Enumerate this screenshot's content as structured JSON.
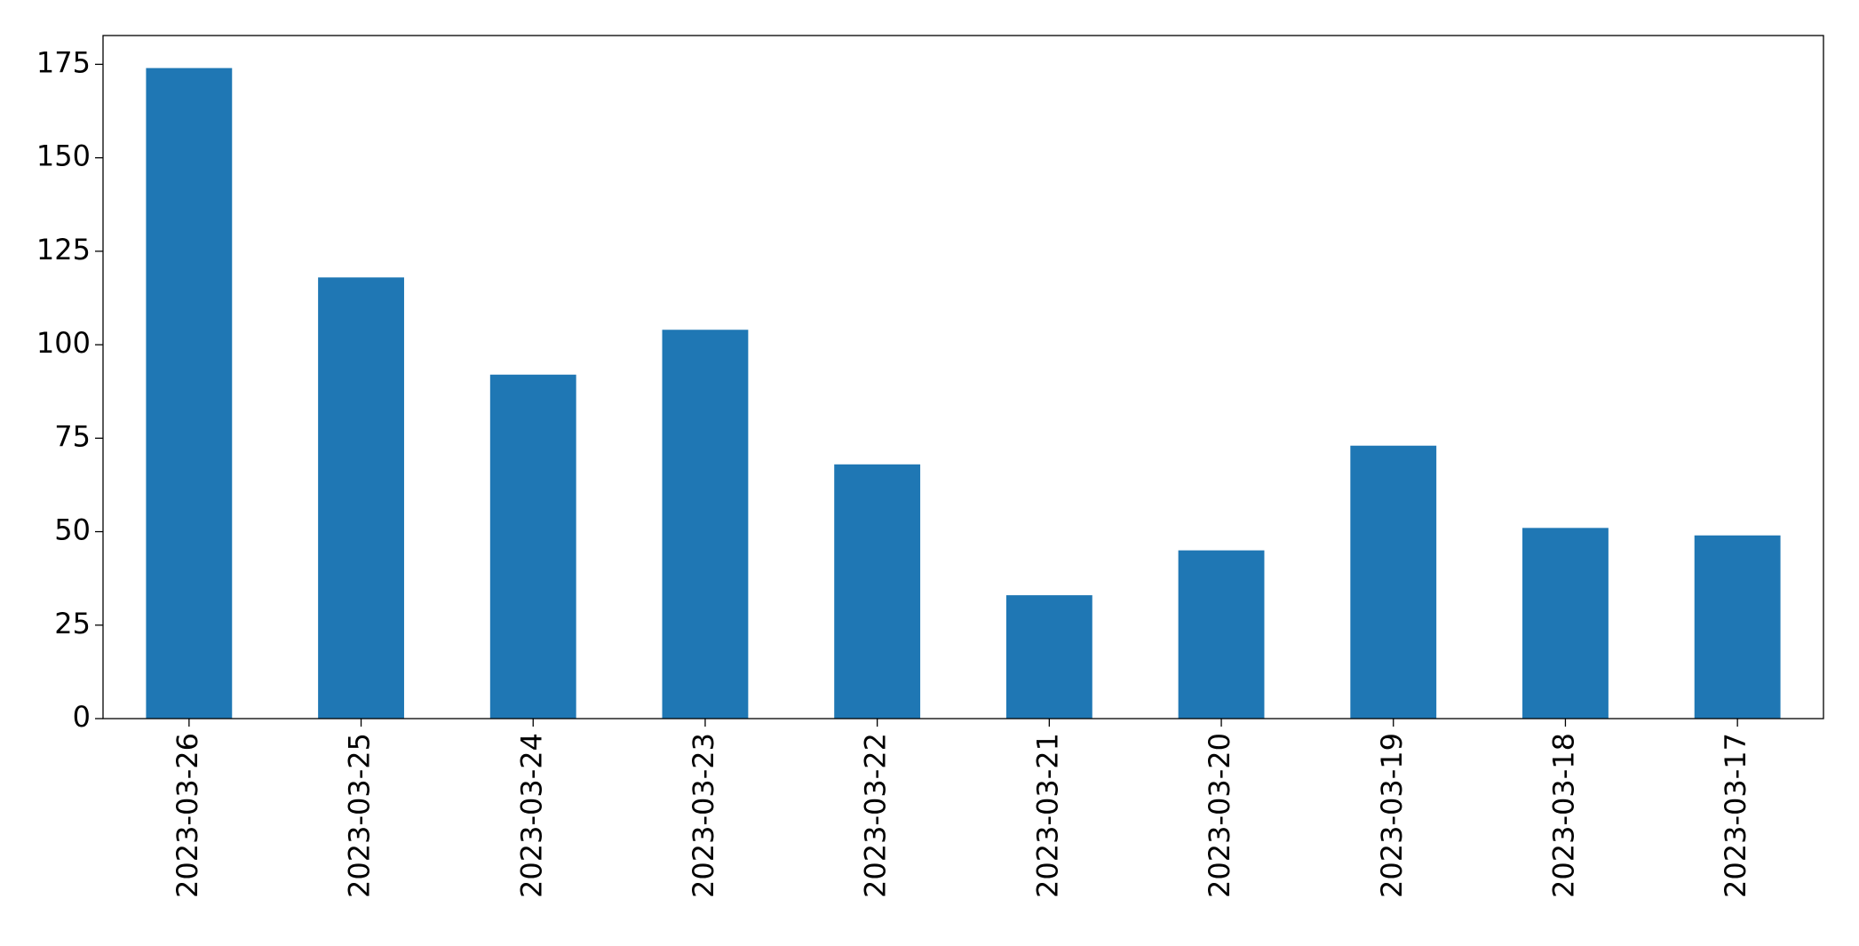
{
  "chart_data": {
    "type": "bar",
    "categories": [
      "2023-03-26",
      "2023-03-25",
      "2023-03-24",
      "2023-03-23",
      "2023-03-22",
      "2023-03-21",
      "2023-03-20",
      "2023-03-19",
      "2023-03-18",
      "2023-03-17"
    ],
    "values": [
      174,
      118,
      92,
      104,
      68,
      33,
      45,
      73,
      51,
      49
    ],
    "color": "#1f77b4",
    "ylim": [
      0,
      182.7
    ],
    "yticks": [
      0,
      25,
      50,
      75,
      100,
      125,
      150,
      175
    ],
    "grid": false
  }
}
